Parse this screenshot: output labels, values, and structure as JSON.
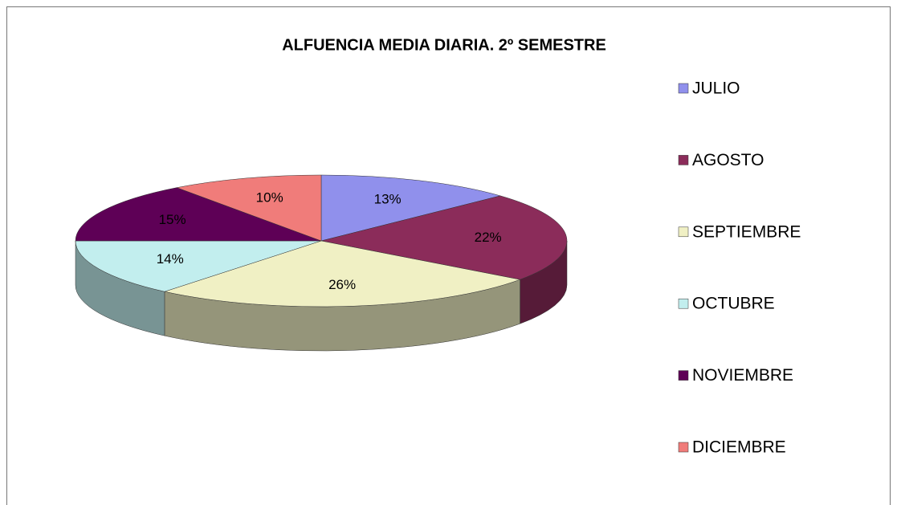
{
  "chart_data": {
    "type": "pie",
    "title": "ALFUENCIA MEDIA DIARIA. 2º SEMESTRE",
    "categories": [
      "JULIO",
      "AGOSTO",
      "SEPTIEMBRE",
      "OCTUBRE",
      "NOVIEMBRE",
      "DICIEMBRE"
    ],
    "values": [
      13,
      22,
      26,
      14,
      15,
      10
    ],
    "value_labels": [
      "13%",
      "22%",
      "26%",
      "14%",
      "15%",
      "10%"
    ],
    "colors": [
      "#9090ec",
      "#8b2c5a",
      "#f0f0c4",
      "#c2eeee",
      "#5e0056",
      "#f07c7a"
    ],
    "legend": "right"
  }
}
